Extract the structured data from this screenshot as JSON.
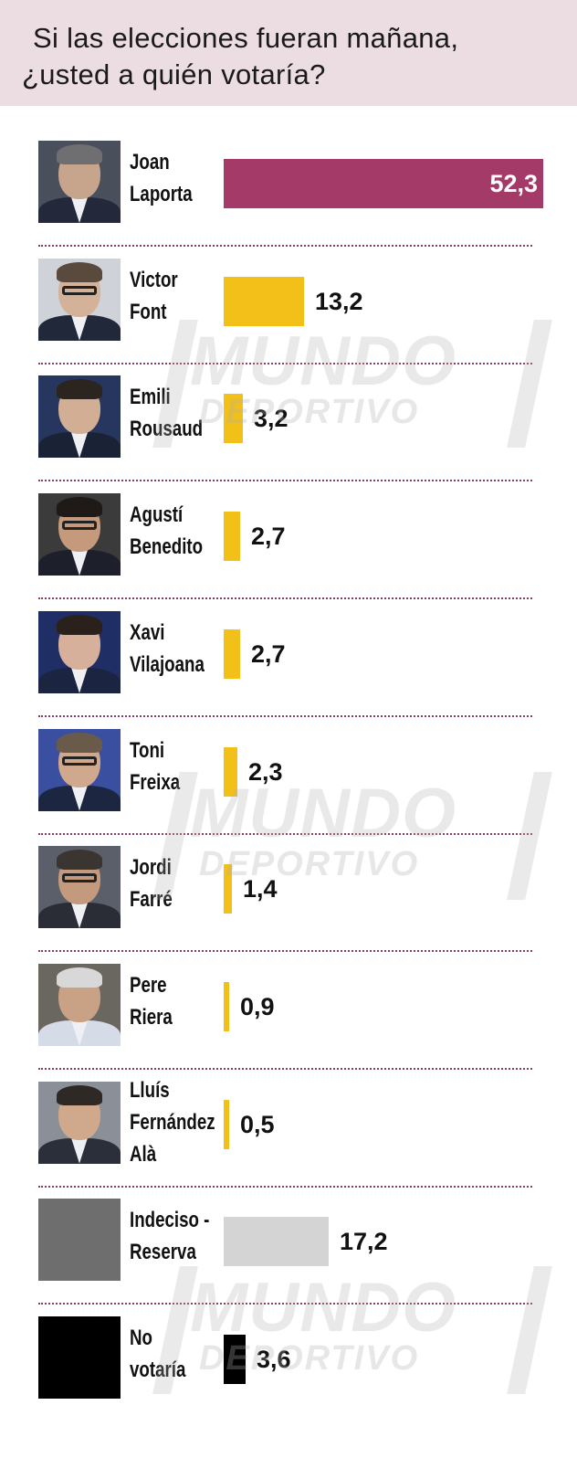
{
  "header": {
    "title_line1": "Si las elecciones fueran mañana,",
    "title_line2": "¿usted a quién votaría?"
  },
  "watermark": {
    "word": "MUNDO",
    "sub": "DEPORTIVO"
  },
  "colors": {
    "header_bg": "#ecdde3",
    "leader_bar": "#a33a68",
    "candidate_bar": "#f2c018",
    "undecided_bar": "#d4d4d4",
    "no_vote_bar": "#000000",
    "divider": "#8e3a62",
    "undecided_swatch": "#6e6e6e",
    "no_vote_swatch": "#000000"
  },
  "chart_data": {
    "type": "bar",
    "orientation": "horizontal",
    "title": "Si las elecciones fueran mañana, ¿usted a quién votaría?",
    "value_unit": "",
    "categories": [
      "Joan Laporta",
      "Victor Font",
      "Emili Rousaud",
      "Agustí Benedito",
      "Xavi Vilajoana",
      "Toni Freixa",
      "Jordi Farré",
      "Pere Riera",
      "Lluís Fernández Alà",
      "Indeciso - Reserva",
      "No votaría"
    ],
    "values": [
      52.3,
      13.2,
      3.2,
      2.7,
      2.7,
      2.3,
      1.4,
      0.9,
      0.5,
      17.2,
      3.6
    ],
    "rows": [
      {
        "name_lines": [
          "Joan",
          "Laporta"
        ],
        "label": "52,3",
        "value": 52.3,
        "kind": "leader",
        "photo": "portrait-laporta"
      },
      {
        "name_lines": [
          "Victor",
          "Font"
        ],
        "label": "13,2",
        "value": 13.2,
        "kind": "candidate",
        "photo": "portrait-font"
      },
      {
        "name_lines": [
          "Emili",
          "Rousaud"
        ],
        "label": "3,2",
        "value": 3.2,
        "kind": "candidate",
        "photo": "portrait-rousaud"
      },
      {
        "name_lines": [
          "Agustí",
          "Benedito"
        ],
        "label": "2,7",
        "value": 2.7,
        "kind": "candidate",
        "photo": "portrait-benedito"
      },
      {
        "name_lines": [
          "Xavi",
          "Vilajoana"
        ],
        "label": "2,7",
        "value": 2.7,
        "kind": "candidate",
        "photo": "portrait-vilajoana"
      },
      {
        "name_lines": [
          "Toni",
          "Freixa"
        ],
        "label": "2,3",
        "value": 2.3,
        "kind": "candidate",
        "photo": "portrait-freixa"
      },
      {
        "name_lines": [
          "Jordi",
          "Farré"
        ],
        "label": "1,4",
        "value": 1.4,
        "kind": "candidate",
        "photo": "portrait-farre"
      },
      {
        "name_lines": [
          "Pere",
          "Riera"
        ],
        "label": "0,9",
        "value": 0.9,
        "kind": "candidate",
        "photo": "portrait-riera"
      },
      {
        "name_lines": [
          "Lluís",
          "Fernández",
          "Alà"
        ],
        "label": "0,5",
        "value": 0.5,
        "kind": "candidate",
        "photo": "portrait-fernandez"
      },
      {
        "name_lines": [
          "Indeciso -",
          "Reserva"
        ],
        "label": "17,2",
        "value": 17.2,
        "kind": "undecided",
        "photo": "swatch-grey"
      },
      {
        "name_lines": [
          "No",
          "votaría"
        ],
        "label": "3,6",
        "value": 3.6,
        "kind": "no_vote",
        "photo": "swatch-black"
      }
    ],
    "xlim": [
      0,
      52.3
    ],
    "grid": false,
    "legend": "none"
  }
}
